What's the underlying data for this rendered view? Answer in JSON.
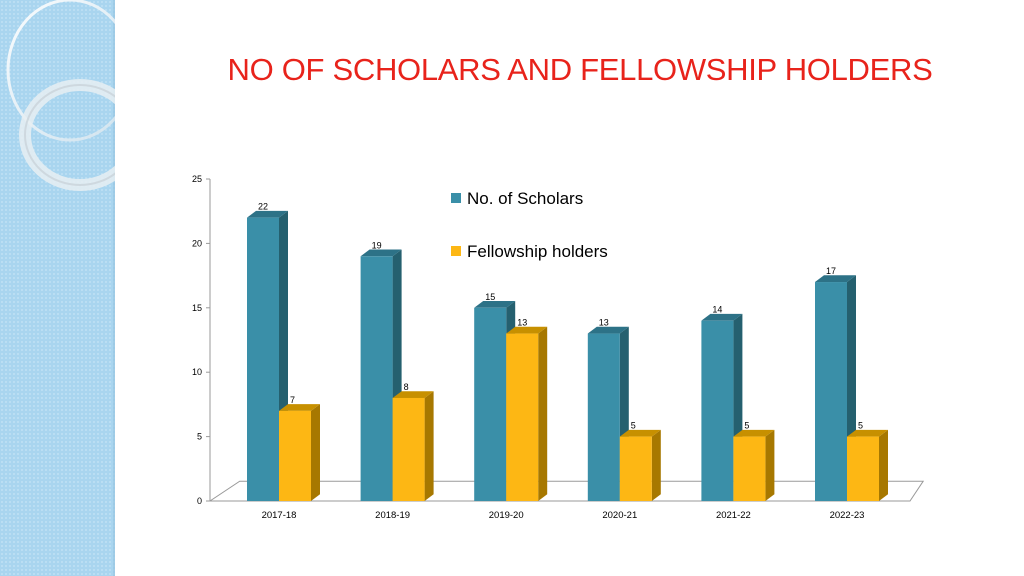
{
  "slide": {
    "title": "NO OF SCHOLARS AND FELLOWSHIP HOLDERS"
  },
  "colors": {
    "scholars": "#3a8fa8",
    "scholars_side": "#25606f",
    "scholars_top": "#2d7287",
    "fellowship": "#fdb714",
    "fellowship_side": "#a77800",
    "fellowship_top": "#c79000",
    "title": "#e8231b",
    "side_panel": "#a8d4ee"
  },
  "chart_data": {
    "type": "bar",
    "title": "",
    "xlabel": "",
    "ylabel": "",
    "categories": [
      "2017-18",
      "2018-19",
      "2019-20",
      "2020-21",
      "2021-22",
      "2022-23"
    ],
    "series": [
      {
        "name": "No. of Scholars",
        "values": [
          22,
          19,
          15,
          13,
          14,
          17
        ]
      },
      {
        "name": "Fellowship holders",
        "values": [
          7,
          8,
          13,
          5,
          5,
          5
        ]
      }
    ],
    "ylim": [
      0,
      25
    ],
    "yticks": [
      0,
      5,
      10,
      15,
      20,
      25
    ],
    "grid": false,
    "legend": "top-center",
    "data_labels": true,
    "style": "3d-column"
  }
}
